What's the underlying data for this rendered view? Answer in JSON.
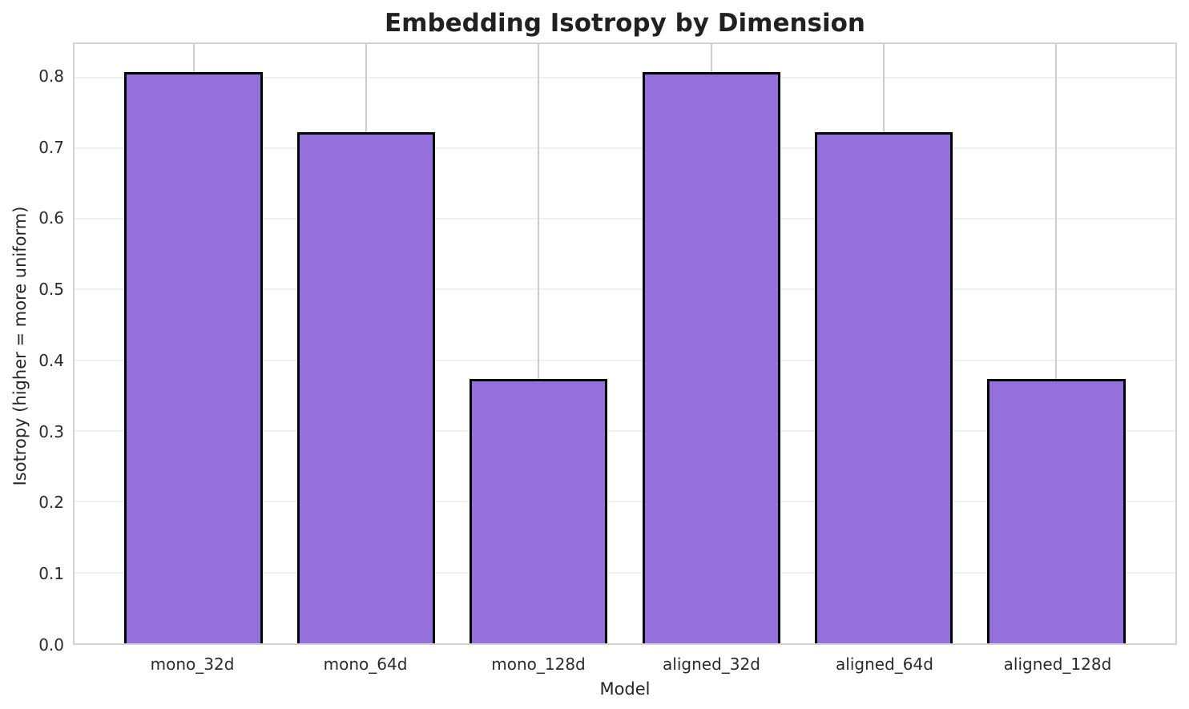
{
  "chart_data": {
    "type": "bar",
    "title": "Embedding Isotropy by Dimension",
    "xlabel": "Model",
    "ylabel": "Isotropy (higher = more uniform)",
    "categories": [
      "mono_32d",
      "mono_64d",
      "mono_128d",
      "aligned_32d",
      "aligned_64d",
      "aligned_128d"
    ],
    "values": [
      0.807,
      0.723,
      0.374,
      0.807,
      0.723,
      0.374
    ],
    "ylim": [
      0,
      0.847
    ],
    "yticks": [
      0.0,
      0.1,
      0.2,
      0.3,
      0.4,
      0.5,
      0.6,
      0.7,
      0.8
    ],
    "grid": true,
    "legend": false,
    "bar_color": "#9370DB",
    "bar_edge_color": "#000000",
    "background_color": "#ffffff",
    "h_grid_color": "#f0f0f0",
    "v_grid_color": "#cccccc"
  }
}
